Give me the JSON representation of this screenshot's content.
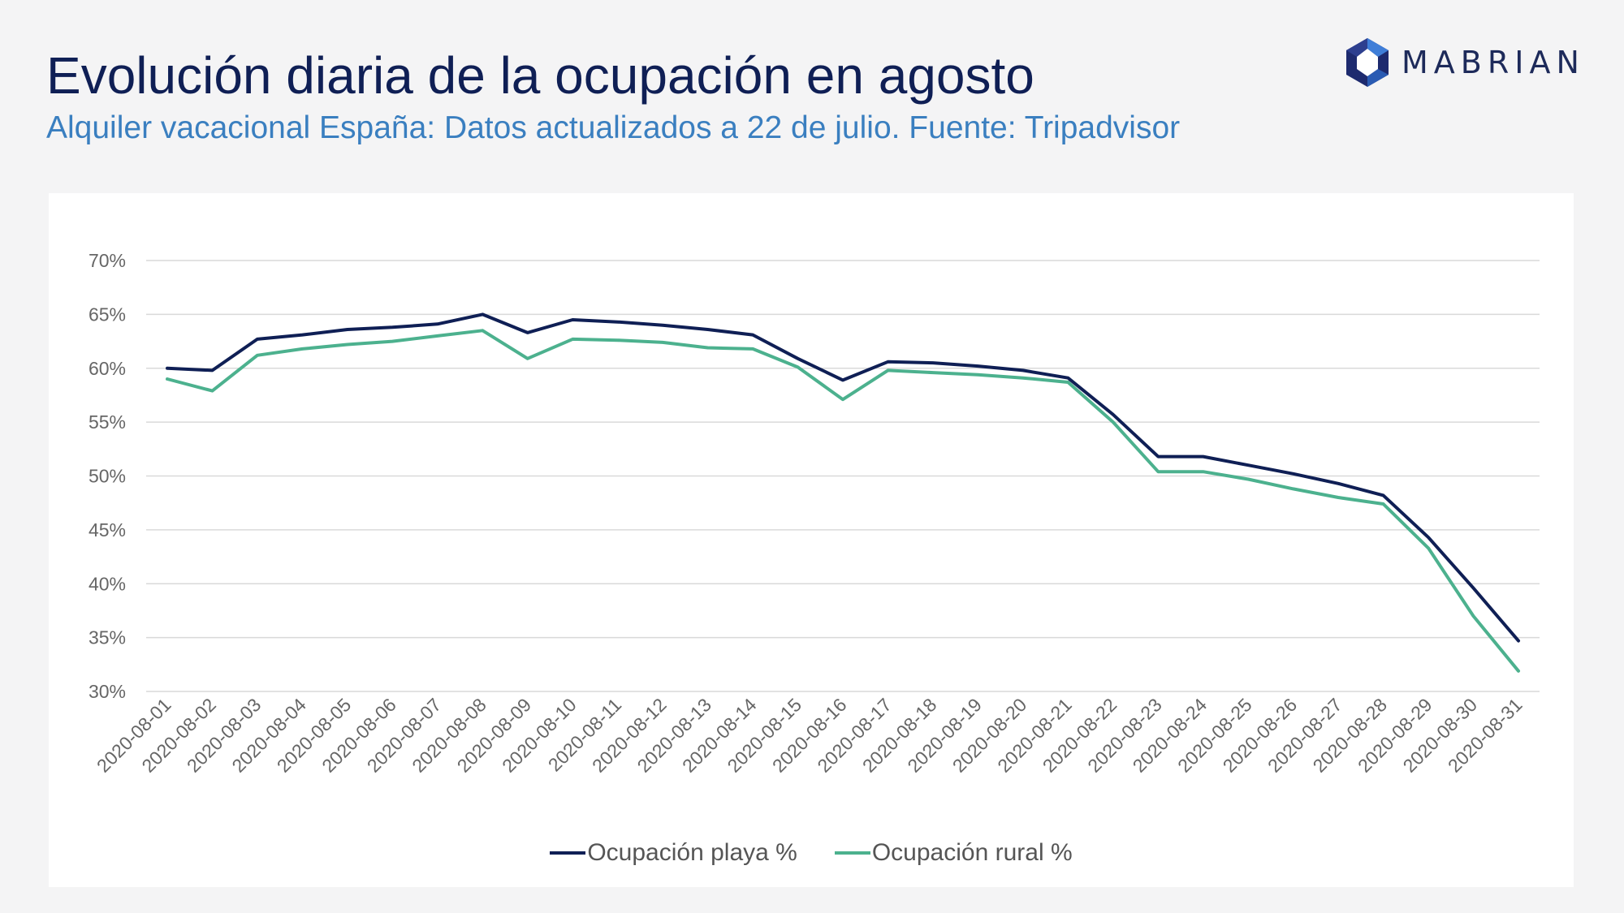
{
  "header": {
    "title": "Evolución diaria de la ocupación en agosto",
    "subtitle": "Alquiler vacacional España: Datos actualizados a 22 de julio. Fuente: Tripadvisor"
  },
  "logo": {
    "text": "MABRIAN",
    "icon": "mabrian-hexagon-logo-icon"
  },
  "chart_data": {
    "type": "line",
    "title": "",
    "xlabel": "",
    "ylabel": "",
    "ylim": [
      30,
      70
    ],
    "yticks": [
      "30%",
      "35%",
      "40%",
      "45%",
      "50%",
      "55%",
      "60%",
      "65%",
      "70%"
    ],
    "grid": true,
    "legend_position": "bottom-center",
    "categories": [
      "2020-08-01",
      "2020-08-02",
      "2020-08-03",
      "2020-08-04",
      "2020-08-05",
      "2020-08-06",
      "2020-08-07",
      "2020-08-08",
      "2020-08-09",
      "2020-08-10",
      "2020-08-11",
      "2020-08-12",
      "2020-08-13",
      "2020-08-14",
      "2020-08-15",
      "2020-08-16",
      "2020-08-17",
      "2020-08-18",
      "2020-08-19",
      "2020-08-20",
      "2020-08-21",
      "2020-08-22",
      "2020-08-23",
      "2020-08-24",
      "2020-08-25",
      "2020-08-26",
      "2020-08-27",
      "2020-08-28",
      "2020-08-29",
      "2020-08-30",
      "2020-08-31"
    ],
    "series": [
      {
        "name": "Ocupación playa  %",
        "color": "#0f1f55",
        "values": [
          60.0,
          59.8,
          62.7,
          63.1,
          63.6,
          63.8,
          64.1,
          65.0,
          63.3,
          64.5,
          64.3,
          64.0,
          63.6,
          63.1,
          60.9,
          58.9,
          60.6,
          60.5,
          60.2,
          59.8,
          59.1,
          55.7,
          51.8,
          51.8,
          51.0,
          50.2,
          49.3,
          48.2,
          44.3,
          39.6,
          34.7
        ]
      },
      {
        "name": "Ocupación rural  %",
        "color": "#4cb18e",
        "values": [
          59.0,
          57.9,
          61.2,
          61.8,
          62.2,
          62.5,
          63.0,
          63.5,
          60.9,
          62.7,
          62.6,
          62.4,
          61.9,
          61.8,
          60.1,
          57.1,
          59.8,
          59.6,
          59.4,
          59.1,
          58.7,
          55.0,
          50.4,
          50.4,
          49.7,
          48.8,
          48.0,
          47.4,
          43.3,
          37.0,
          31.9
        ]
      }
    ]
  }
}
